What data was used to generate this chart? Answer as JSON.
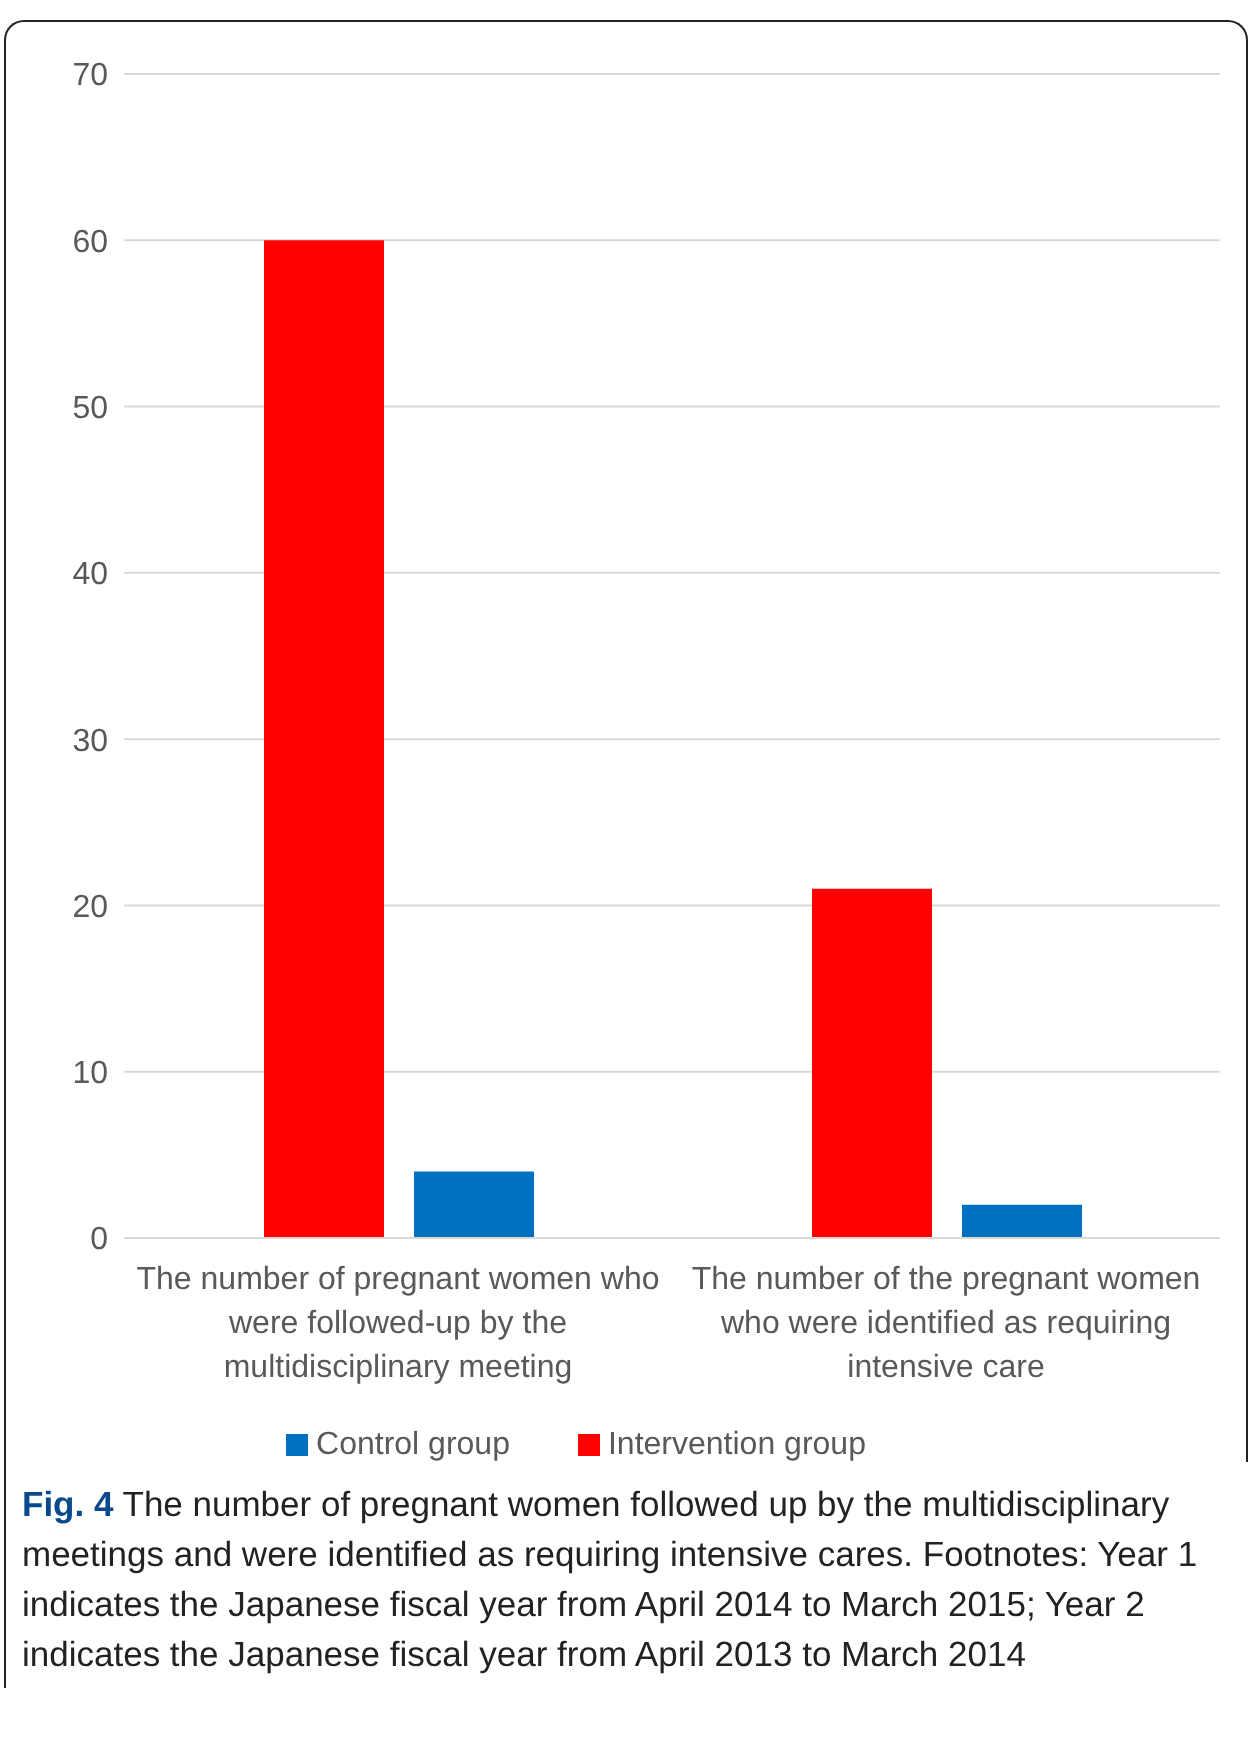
{
  "chart_data": {
    "type": "bar",
    "categories": [
      "The number of pregnant women who were followed-up by the multidisciplinary meeting",
      "The number of the pregnant women who were identified as requiring intensive care"
    ],
    "series": [
      {
        "name": "Intervention group",
        "color": "#ff0000",
        "values": [
          60,
          21
        ]
      },
      {
        "name": "Control group",
        "color": "#0070c0",
        "values": [
          4,
          2
        ]
      }
    ],
    "ylim": [
      0,
      70
    ],
    "yticks": [
      0,
      10,
      20,
      30,
      40,
      50,
      60,
      70
    ],
    "grid": "y",
    "legend": "bottom",
    "annotations": [
      "Fig. 4",
      "The number of pregnant women followed up by the multidisciplinary meetings and were identified as requiring intensive cares. Footnotes: Year 1 indicates the Japanese fiscal year from April 2014 to March 2015; Year 2 indicates the Japanese fiscal year from April 2013 to March 2014"
    ]
  }
}
